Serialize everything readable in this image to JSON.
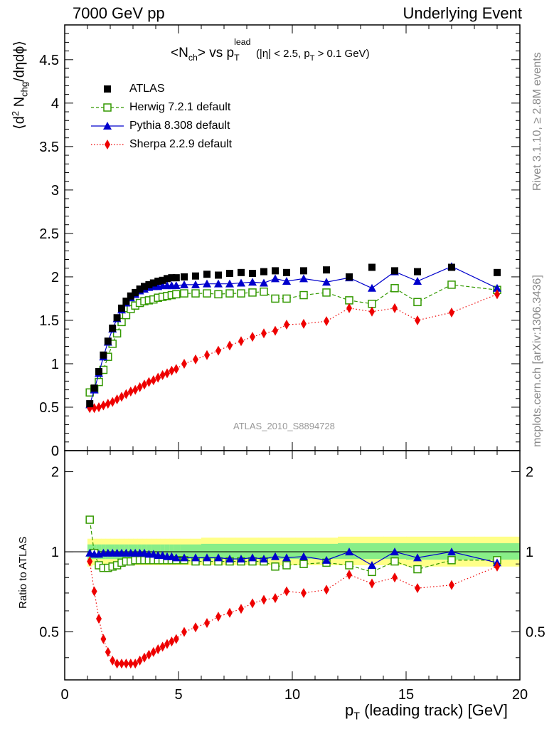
{
  "header": {
    "left": "7000 GeV pp",
    "right": "Underlying Event"
  },
  "side_text": {
    "rivet": "Rivet 3.1.10, ≥ 2.8M events",
    "mcplots": "mcplots.cern.ch [arXiv:1306.3436]"
  },
  "title": {
    "prefix": "<N",
    "ch": "ch",
    "mid": "> vs p",
    "T": "T",
    "lead": "lead",
    "cuts": "(|η| < 2.5, p",
    "cutsT": "T",
    "cuts_end": " > 0.1 GeV)"
  },
  "analysis_id": "ATLAS_2010_S8894728",
  "y_main_label": {
    "a": "⟨d",
    "sup2": "2",
    "b": " N",
    "chg": "chg",
    "c": "/dηdϕ⟩"
  },
  "y_ratio_label": "Ratio to ATLAS",
  "x_label": {
    "p": "p",
    "T": "T",
    "rest": " (leading track) [GeV]"
  },
  "legend": [
    {
      "label": "ATLAS"
    },
    {
      "label": "Herwig 7.2.1 default"
    },
    {
      "label": "Pythia 8.308 default"
    },
    {
      "label": "Sherpa 2.2.9 default"
    }
  ],
  "chart_data": {
    "type": "scatter",
    "x": [
      1.1,
      1.3,
      1.5,
      1.7,
      1.9,
      2.1,
      2.3,
      2.5,
      2.7,
      2.9,
      3.1,
      3.3,
      3.5,
      3.7,
      3.9,
      4.1,
      4.3,
      4.5,
      4.7,
      4.9,
      5.25,
      5.75,
      6.25,
      6.75,
      7.25,
      7.75,
      8.25,
      8.75,
      9.25,
      9.75,
      10.5,
      11.5,
      12.5,
      13.5,
      14.5,
      15.5,
      17.0,
      19.0
    ],
    "series": [
      {
        "name": "ATLAS",
        "color": "#000000",
        "values": [
          0.54,
          0.72,
          0.91,
          1.1,
          1.26,
          1.41,
          1.53,
          1.64,
          1.72,
          1.78,
          1.82,
          1.86,
          1.89,
          1.91,
          1.93,
          1.95,
          1.96,
          1.98,
          1.99,
          1.99,
          2.0,
          2.01,
          2.03,
          2.02,
          2.04,
          2.05,
          2.04,
          2.06,
          2.07,
          2.05,
          2.07,
          2.08,
          2.0,
          2.11,
          2.07,
          2.06,
          2.11,
          2.05
        ],
        "band_low": [
          0.88,
          0.89,
          0.89,
          0.89,
          0.89,
          0.89,
          0.89,
          0.89,
          0.89,
          0.89,
          0.89,
          0.89,
          0.89,
          0.89,
          0.89,
          0.89,
          0.89,
          0.89,
          0.89,
          0.89,
          0.89,
          0.89,
          0.89,
          0.89,
          0.89,
          0.89,
          0.89,
          0.89,
          0.89,
          0.89,
          0.89,
          0.89,
          0.89,
          0.89,
          0.89,
          0.88,
          0.88,
          0.88
        ],
        "band_high": [
          1.12,
          1.12,
          1.12,
          1.12,
          1.12,
          1.12,
          1.12,
          1.12,
          1.12,
          1.12,
          1.12,
          1.12,
          1.12,
          1.12,
          1.12,
          1.12,
          1.12,
          1.12,
          1.12,
          1.12,
          1.12,
          1.12,
          1.13,
          1.13,
          1.13,
          1.13,
          1.13,
          1.13,
          1.13,
          1.13,
          1.13,
          1.13,
          1.14,
          1.14,
          1.14,
          1.14,
          1.14,
          1.14
        ]
      },
      {
        "name": "Herwig 7.2.1 default",
        "color": "#339900",
        "values": [
          0.67,
          0.71,
          0.79,
          0.93,
          1.08,
          1.23,
          1.35,
          1.48,
          1.56,
          1.63,
          1.67,
          1.7,
          1.72,
          1.73,
          1.74,
          1.76,
          1.77,
          1.78,
          1.79,
          1.8,
          1.81,
          1.81,
          1.81,
          1.8,
          1.81,
          1.81,
          1.82,
          1.83,
          1.75,
          1.75,
          1.79,
          1.82,
          1.73,
          1.69,
          1.87,
          1.71,
          1.91,
          1.85
        ]
      },
      {
        "name": "Pythia 8.308 default",
        "color": "#0000cc",
        "values": [
          0.53,
          0.7,
          0.89,
          1.08,
          1.25,
          1.4,
          1.52,
          1.62,
          1.7,
          1.76,
          1.8,
          1.84,
          1.86,
          1.88,
          1.89,
          1.89,
          1.9,
          1.9,
          1.9,
          1.9,
          1.91,
          1.91,
          1.92,
          1.92,
          1.92,
          1.93,
          1.94,
          1.93,
          1.98,
          1.95,
          1.98,
          1.94,
          1.99,
          1.87,
          2.06,
          1.95,
          2.12,
          1.87
        ]
      },
      {
        "name": "Sherpa 2.2.9 default",
        "color": "#ee0000",
        "values": [
          0.49,
          0.49,
          0.5,
          0.52,
          0.54,
          0.56,
          0.59,
          0.62,
          0.65,
          0.68,
          0.7,
          0.73,
          0.76,
          0.79,
          0.81,
          0.84,
          0.87,
          0.89,
          0.92,
          0.94,
          1.0,
          1.05,
          1.1,
          1.15,
          1.21,
          1.26,
          1.31,
          1.35,
          1.38,
          1.45,
          1.46,
          1.49,
          1.64,
          1.6,
          1.64,
          1.5,
          1.59,
          1.8
        ]
      }
    ],
    "ratio": {
      "Herwig 7.2.1 default": [
        1.32,
        0.99,
        0.89,
        0.87,
        0.87,
        0.88,
        0.89,
        0.91,
        0.92,
        0.92,
        0.93,
        0.93,
        0.93,
        0.93,
        0.93,
        0.93,
        0.93,
        0.93,
        0.93,
        0.93,
        0.93,
        0.92,
        0.92,
        0.92,
        0.92,
        0.92,
        0.92,
        0.92,
        0.88,
        0.89,
        0.9,
        0.91,
        0.89,
        0.84,
        0.92,
        0.86,
        0.93,
        0.93
      ],
      "Pythia 8.308 default": [
        0.99,
        0.98,
        0.98,
        0.99,
        0.99,
        0.99,
        0.99,
        0.99,
        0.99,
        0.99,
        0.99,
        0.99,
        0.99,
        0.98,
        0.98,
        0.97,
        0.97,
        0.96,
        0.96,
        0.95,
        0.95,
        0.95,
        0.95,
        0.95,
        0.94,
        0.94,
        0.95,
        0.94,
        0.96,
        0.95,
        0.96,
        0.93,
        1.0,
        0.89,
        1.0,
        0.95,
        1.0,
        0.91
      ],
      "Sherpa 2.2.9 default": [
        0.92,
        0.71,
        0.56,
        0.47,
        0.42,
        0.39,
        0.38,
        0.38,
        0.38,
        0.38,
        0.38,
        0.39,
        0.4,
        0.41,
        0.42,
        0.43,
        0.44,
        0.45,
        0.46,
        0.47,
        0.5,
        0.52,
        0.54,
        0.57,
        0.59,
        0.61,
        0.64,
        0.66,
        0.67,
        0.71,
        0.7,
        0.72,
        0.82,
        0.76,
        0.8,
        0.73,
        0.75,
        0.88
      ]
    },
    "x_ticks": [
      "0",
      "5",
      "10",
      "15",
      "20"
    ],
    "y_ticks_main": [
      "0",
      "0.5",
      "1",
      "1.5",
      "2",
      "2.5",
      "3",
      "3.5",
      "4",
      "4.5"
    ],
    "y_ticks_ratio": [
      "0.5",
      "1",
      "2"
    ],
    "xlim": [
      0,
      20
    ],
    "ylim_main": [
      0,
      4.9
    ],
    "ylim_ratio": [
      0.33,
      2.4
    ],
    "ratio_scale": "log"
  }
}
